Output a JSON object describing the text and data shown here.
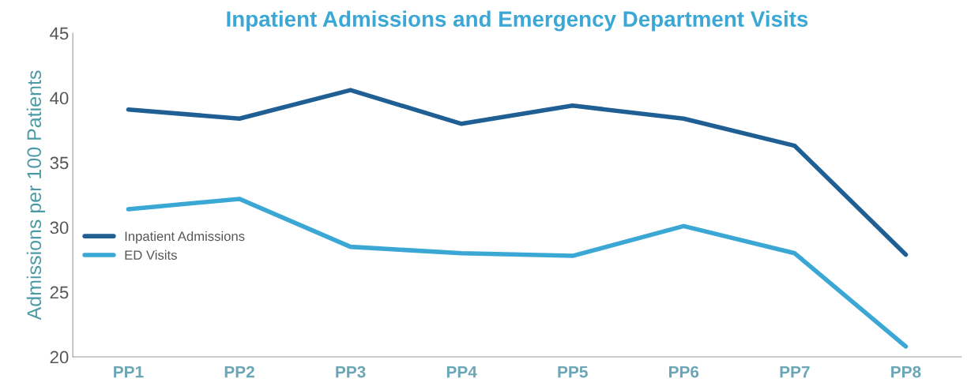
{
  "chart_data": {
    "type": "line",
    "title": "Inpatient Admissions and Emergency Department Visits",
    "ylabel": "Admissions per 100 Patients",
    "categories": [
      "PP1",
      "PP2",
      "PP3",
      "PP4",
      "PP5",
      "PP6",
      "PP7",
      "PP8"
    ],
    "series": [
      {
        "name": "Inpatient Admissions",
        "color": "#1f5f94",
        "values": [
          39.1,
          38.4,
          40.6,
          38.0,
          39.4,
          38.4,
          36.3,
          27.9
        ]
      },
      {
        "name": "ED Visits",
        "color": "#3aa7d4",
        "values": [
          31.4,
          32.2,
          28.5,
          28.0,
          27.8,
          30.1,
          28.0,
          20.8
        ]
      }
    ],
    "ylim": [
      20,
      45
    ],
    "yticks": [
      20,
      25,
      30,
      35,
      40,
      45
    ],
    "grid": false,
    "legend": "center left",
    "marker": "none",
    "line_style": "solid"
  }
}
